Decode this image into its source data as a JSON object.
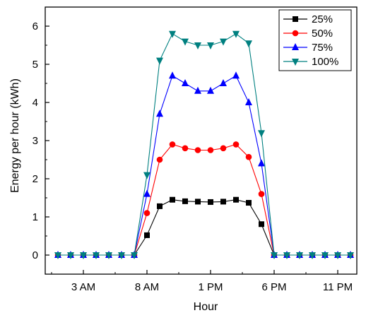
{
  "chart_data": {
    "type": "line",
    "title": "",
    "xlabel": "Hour",
    "ylabel": "Energy per hour (kWh)",
    "x": [
      1,
      2,
      3,
      4,
      5,
      6,
      7,
      8,
      9,
      10,
      11,
      12,
      13,
      14,
      15,
      16,
      17,
      18,
      19,
      20,
      21,
      22,
      23,
      24
    ],
    "xlim": [
      0,
      24.5
    ],
    "ylim": [
      -0.5,
      6.5
    ],
    "x_ticks": [
      {
        "value": 3,
        "label": "3 AM"
      },
      {
        "value": 8,
        "label": "8 AM"
      },
      {
        "value": 13,
        "label": "1 PM"
      },
      {
        "value": 18,
        "label": "6 PM"
      },
      {
        "value": 23,
        "label": "11 PM"
      }
    ],
    "y_ticks": [
      {
        "value": 0,
        "label": "0"
      },
      {
        "value": 1,
        "label": "1"
      },
      {
        "value": 2,
        "label": "2"
      },
      {
        "value": 3,
        "label": "3"
      },
      {
        "value": 4,
        "label": "4"
      },
      {
        "value": 5,
        "label": "5"
      },
      {
        "value": 6,
        "label": "6"
      }
    ],
    "grid": false,
    "legend_position": "top-right",
    "series": [
      {
        "name": "25%",
        "color": "#000000",
        "marker": "square",
        "values": [
          0,
          0,
          0,
          0,
          0,
          0,
          0,
          0.52,
          1.28,
          1.45,
          1.41,
          1.4,
          1.39,
          1.4,
          1.45,
          1.37,
          0.81,
          0,
          0,
          0,
          0,
          0,
          0,
          0
        ]
      },
      {
        "name": "50%",
        "color": "#ff0000",
        "marker": "circle",
        "values": [
          0,
          0,
          0,
          0,
          0,
          0,
          0,
          1.1,
          2.5,
          2.9,
          2.8,
          2.75,
          2.75,
          2.8,
          2.9,
          2.57,
          1.6,
          0,
          0,
          0,
          0,
          0,
          0,
          0
        ]
      },
      {
        "name": "75%",
        "color": "#0000ff",
        "marker": "triangle-up",
        "values": [
          0,
          0,
          0,
          0,
          0,
          0,
          0,
          1.6,
          3.7,
          4.7,
          4.5,
          4.3,
          4.3,
          4.5,
          4.7,
          4.0,
          2.4,
          0,
          0,
          0,
          0,
          0,
          0,
          0
        ]
      },
      {
        "name": "100%",
        "color": "#008080",
        "marker": "triangle-down",
        "values": [
          0,
          0,
          0,
          0,
          0,
          0,
          0,
          2.1,
          5.1,
          5.8,
          5.6,
          5.5,
          5.5,
          5.6,
          5.8,
          5.55,
          3.2,
          0,
          0,
          0,
          0,
          0,
          0,
          0
        ]
      }
    ]
  }
}
